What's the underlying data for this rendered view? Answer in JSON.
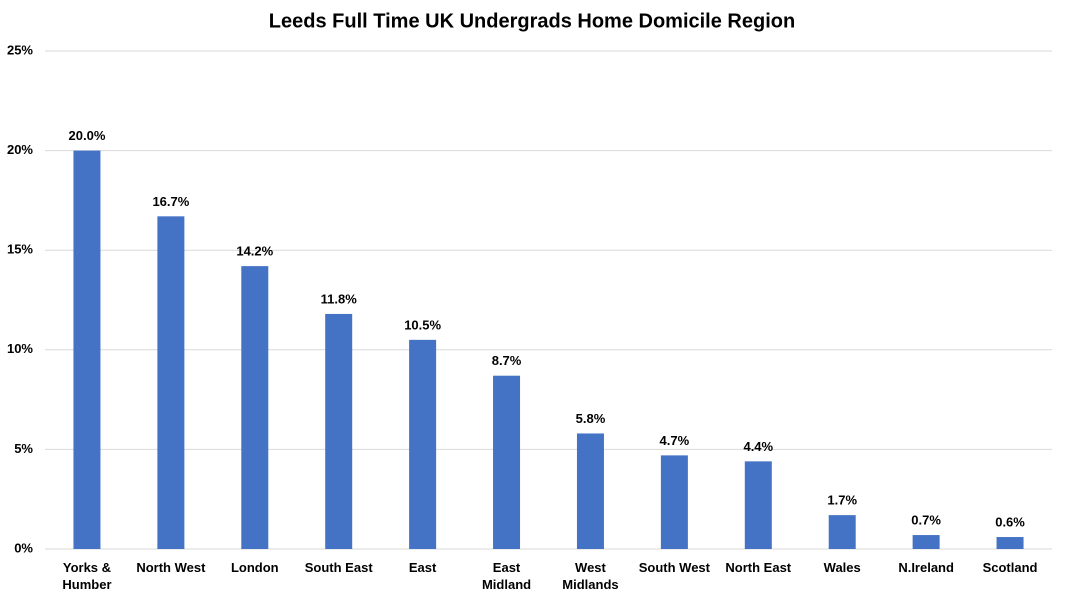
{
  "chart_data": {
    "type": "bar",
    "title": "Leeds Full Time UK Undergrads Home Domicile Region",
    "categories": [
      "Yorks & Humber",
      "North West",
      "London",
      "South East",
      "East",
      "East Midland",
      "West Midlands",
      "South West",
      "North East",
      "Wales",
      "N.Ireland",
      "Scotland"
    ],
    "values": [
      20.0,
      16.7,
      14.2,
      11.8,
      10.5,
      8.7,
      5.8,
      4.7,
      4.4,
      1.7,
      0.7,
      0.6
    ],
    "value_labels": [
      "20.0%",
      "16.7%",
      "14.2%",
      "11.8%",
      "10.5%",
      "8.7%",
      "5.8%",
      "4.7%",
      "4.4%",
      "1.7%",
      "0.7%",
      "0.6%"
    ],
    "color": "#4472c4",
    "ylim": [
      0,
      25
    ],
    "yticks": [
      {
        "value": 0,
        "label": "0%"
      },
      {
        "value": 5,
        "label": "5%"
      },
      {
        "value": 10,
        "label": "10%"
      },
      {
        "value": 15,
        "label": "15%"
      },
      {
        "value": 20,
        "label": "20%"
      },
      {
        "value": 25,
        "label": "25%"
      }
    ],
    "grid": true
  }
}
